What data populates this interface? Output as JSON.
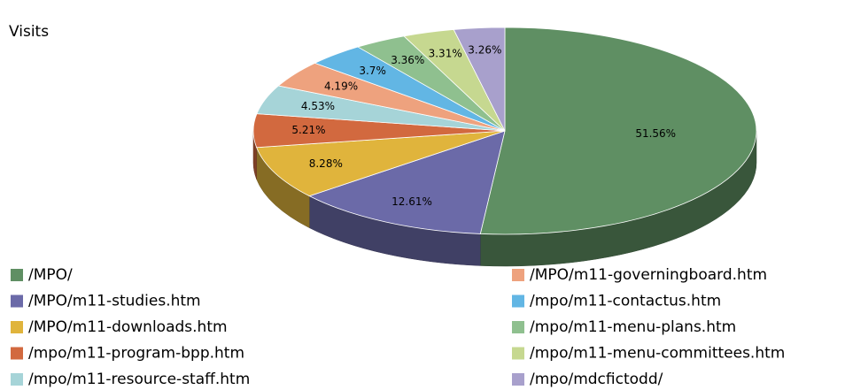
{
  "chart_data": {
    "type": "pie",
    "title": "Visits",
    "categories": [
      "/MPO/",
      "/MPO/m11-studies.htm",
      "/MPO/m11-downloads.htm",
      "/mpo/m11-program-bpp.htm",
      "/mpo/m11-resource-staff.htm",
      "/MPO/m11-governingboard.htm",
      "/mpo/m11-contactus.htm",
      "/mpo/m11-menu-plans.htm",
      "/mpo/m11-menu-committees.htm",
      "/mpo/mdcfictodd/"
    ],
    "values": [
      51.56,
      12.61,
      8.28,
      5.21,
      4.53,
      4.19,
      3.7,
      3.36,
      3.31,
      3.26
    ],
    "value_labels": [
      "51.56%",
      "12.61%",
      "8.28%",
      "5.21%",
      "4.53%",
      "4.19%",
      "3.7%",
      "3.36%",
      "3.31%",
      "3.26%"
    ],
    "colors": [
      "#5f8f63",
      "#6b6aa8",
      "#e0b43c",
      "#d2693f",
      "#a6d4d8",
      "#eea27e",
      "#62b6e4",
      "#8fc08f",
      "#c6d890",
      "#a8a0cc"
    ]
  }
}
